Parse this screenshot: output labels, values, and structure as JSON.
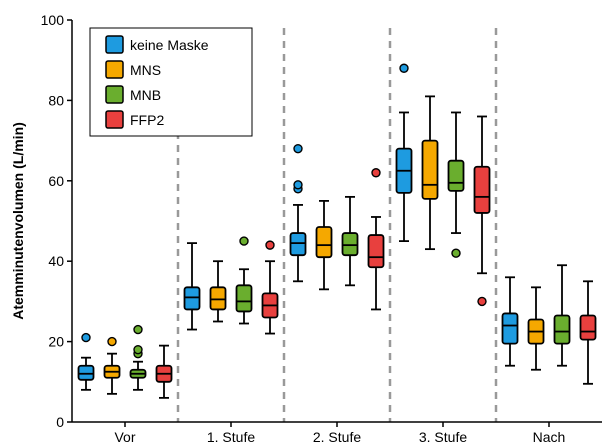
{
  "chart_data": {
    "type": "box",
    "ylabel": "Atemminutenvolumen (L/min)",
    "ylim": [
      0,
      100
    ],
    "yticks": [
      0,
      20,
      40,
      60,
      80,
      100
    ],
    "categories": [
      "Vor",
      "1. Stufe",
      "2. Stufe",
      "3. Stufe",
      "Nach"
    ],
    "legend_position": "top-left",
    "series": [
      {
        "name": "keine Maske",
        "color": "#1E9BE0",
        "boxes": [
          {
            "whislo": 8,
            "q1": 10.5,
            "med": 12,
            "q3": 14,
            "whishi": 16,
            "fliers": [
              21
            ]
          },
          {
            "whislo": 23,
            "q1": 28,
            "med": 31,
            "q3": 33.5,
            "whishi": 44.5,
            "fliers": []
          },
          {
            "whislo": 35,
            "q1": 41.5,
            "med": 44.5,
            "q3": 47,
            "whishi": 54,
            "fliers": [
              58,
              59,
              68
            ]
          },
          {
            "whislo": 45,
            "q1": 57,
            "med": 62.5,
            "q3": 68,
            "whishi": 77,
            "fliers": [
              88
            ]
          },
          {
            "whislo": 14,
            "q1": 19.5,
            "med": 24,
            "q3": 27,
            "whishi": 36,
            "fliers": []
          }
        ]
      },
      {
        "name": "MNS",
        "color": "#F5A800",
        "boxes": [
          {
            "whislo": 7,
            "q1": 11,
            "med": 12.5,
            "q3": 14,
            "whishi": 17,
            "fliers": [
              20
            ]
          },
          {
            "whislo": 25,
            "q1": 28,
            "med": 30.5,
            "q3": 33.5,
            "whishi": 40,
            "fliers": []
          },
          {
            "whislo": 33,
            "q1": 41,
            "med": 44,
            "q3": 48.5,
            "whishi": 55,
            "fliers": []
          },
          {
            "whislo": 43,
            "q1": 55.5,
            "med": 59,
            "q3": 70,
            "whishi": 81,
            "fliers": []
          },
          {
            "whislo": 13,
            "q1": 19.5,
            "med": 22.5,
            "q3": 25.5,
            "whishi": 33.5,
            "fliers": []
          }
        ]
      },
      {
        "name": "MNB",
        "color": "#6AAE2E",
        "boxes": [
          {
            "whislo": 8,
            "q1": 11,
            "med": 12,
            "q3": 13,
            "whishi": 15,
            "fliers": [
              17,
              18,
              23
            ]
          },
          {
            "whislo": 24.5,
            "q1": 27.5,
            "med": 30,
            "q3": 34,
            "whishi": 38,
            "fliers": [
              45
            ]
          },
          {
            "whislo": 34,
            "q1": 41.5,
            "med": 44,
            "q3": 47,
            "whishi": 56,
            "fliers": []
          },
          {
            "whislo": 47,
            "q1": 57.5,
            "med": 59.5,
            "q3": 65,
            "whishi": 77,
            "fliers": [
              42
            ]
          },
          {
            "whislo": 14,
            "q1": 19.5,
            "med": 22.5,
            "q3": 26.5,
            "whishi": 39,
            "fliers": []
          }
        ]
      },
      {
        "name": "FFP2",
        "color": "#E8403E",
        "boxes": [
          {
            "whislo": 6,
            "q1": 10,
            "med": 12,
            "q3": 14,
            "whishi": 19,
            "fliers": []
          },
          {
            "whislo": 22,
            "q1": 26,
            "med": 29,
            "q3": 32,
            "whishi": 40,
            "fliers": [
              44
            ]
          },
          {
            "whislo": 28,
            "q1": 38.5,
            "med": 41,
            "q3": 46.5,
            "whishi": 51,
            "fliers": [
              62
            ]
          },
          {
            "whislo": 37,
            "q1": 52,
            "med": 56,
            "q3": 63.5,
            "whishi": 76,
            "fliers": [
              30
            ]
          },
          {
            "whislo": 9.5,
            "q1": 20.5,
            "med": 22.5,
            "q3": 26.5,
            "whishi": 35,
            "fliers": []
          }
        ]
      }
    ]
  }
}
